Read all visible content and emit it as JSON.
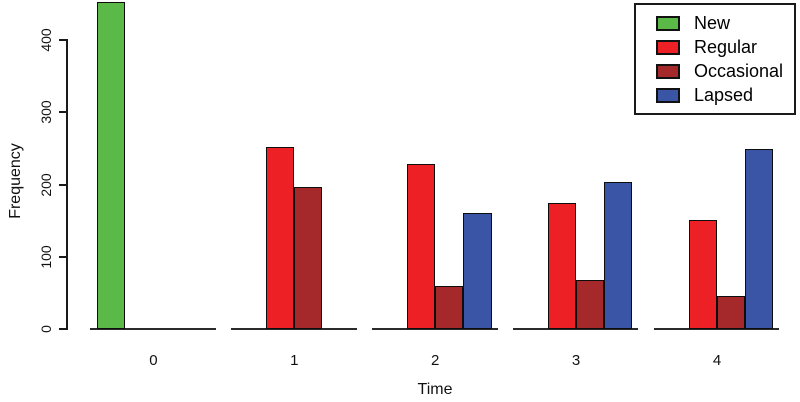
{
  "chart_data": {
    "type": "bar",
    "title": "",
    "xlabel": "Time",
    "ylabel": "Frequency",
    "categories": [
      "0",
      "1",
      "2",
      "3",
      "4"
    ],
    "series": [
      {
        "name": "New",
        "color": "#5BBA47",
        "values": [
          453,
          0,
          0,
          0,
          0
        ]
      },
      {
        "name": "Regular",
        "color": "#EC2025",
        "values": [
          0,
          252,
          228,
          175,
          151
        ]
      },
      {
        "name": "Occasional",
        "color": "#A5292A",
        "values": [
          0,
          196,
          60,
          68,
          45
        ]
      },
      {
        "name": "Lapsed",
        "color": "#3A55A5",
        "values": [
          0,
          0,
          160,
          203,
          249
        ]
      }
    ],
    "y_ticks": [
      0,
      100,
      200,
      300,
      400
    ],
    "ylim": [
      0,
      455
    ],
    "grid": false,
    "legend_position": "top-right",
    "bar_border_color": "#0d0d0d",
    "axis_color": "#1a1a1a"
  }
}
